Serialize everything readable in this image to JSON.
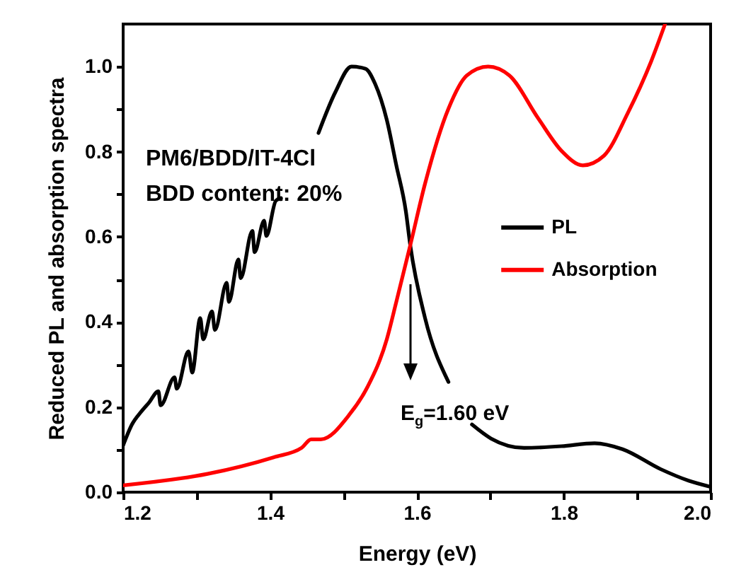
{
  "chart_data": {
    "type": "line",
    "xlabel": "Energy (eV)",
    "ylabel": "Reduced PL and absorption spectra",
    "annotations": [
      "PM6/BDD/IT-4Cl",
      "BDD content: 20%",
      "E$_{g}$=1.60 eV"
    ],
    "xlim": [
      1.2,
      2.0
    ],
    "ylim": [
      0,
      1.1
    ],
    "xticks": [
      1.2,
      {
        "value": 1.3,
        "label": null
      },
      1.4,
      {
        "value": 1.5,
        "label": null
      },
      1.6,
      {
        "value": 1.7,
        "label": null
      },
      1.8,
      {
        "value": 1.9,
        "label": null
      },
      {
        "value": 2.0,
        "label": "2.0"
      }
    ],
    "yticks": [
      {
        "value": 0,
        "label": "0.0"
      },
      {
        "value": 0.1,
        "label": null
      },
      0.2,
      {
        "value": 0.3,
        "label": null
      },
      0.4,
      {
        "value": 0.5,
        "label": null
      },
      0.6,
      {
        "value": 0.7,
        "label": null
      },
      0.8,
      {
        "value": 0.9,
        "label": null
      },
      {
        "value": 1.0,
        "label": "1.0"
      }
    ],
    "legend": "right",
    "series": [
      {
        "name": "PL",
        "color": "#000000",
        "x": [
          1.2,
          1.212,
          1.225,
          1.235,
          1.248,
          1.251,
          1.27,
          1.273,
          1.289,
          1.294,
          1.305,
          1.309,
          1.321,
          1.325,
          1.341,
          1.344,
          1.357,
          1.36,
          1.376,
          1.379,
          1.392,
          1.395,
          1.408,
          1.415,
          1.44,
          1.466,
          1.489,
          1.511,
          1.53,
          1.543,
          1.559,
          1.572,
          1.585,
          1.591,
          1.611,
          1.643,
          1.66,
          1.675,
          1.701,
          1.746,
          1.797,
          1.842,
          1.88,
          1.932,
          1.97,
          1.999
        ],
        "values": [
          0.11,
          0.159,
          0.19,
          0.21,
          0.237,
          0.204,
          0.27,
          0.243,
          0.331,
          0.281,
          0.409,
          0.359,
          0.425,
          0.381,
          0.492,
          0.447,
          0.547,
          0.503,
          0.614,
          0.564,
          0.638,
          0.602,
          0.685,
          0.691,
          null,
          0.844,
          0.94,
          1.0,
          0.995,
          0.96,
          0.875,
          0.768,
          0.66,
          0.58,
          0.41,
          0.259,
          null,
          0.159,
          0.126,
          0.104,
          0.108,
          0.115,
          0.101,
          0.054,
          0.027,
          0.013
        ]
      },
      {
        "name": "Absorption",
        "color": "#ff0000",
        "x": [
          1.2,
          1.315,
          1.405,
          1.443,
          1.456,
          1.469,
          1.508,
          1.533,
          1.559,
          1.572,
          1.591,
          1.611,
          1.643,
          1.668,
          1.697,
          1.726,
          1.765,
          1.797,
          1.826,
          1.855,
          1.887,
          1.919,
          1.938
        ],
        "values": [
          0.016,
          0.043,
          0.082,
          0.104,
          0.124,
          0.124,
          0.182,
          0.248,
          0.359,
          0.447,
          0.58,
          0.724,
          0.901,
          0.979,
          1.0,
          0.979,
          0.879,
          0.802,
          0.768,
          0.791,
          0.89,
          1.012,
          1.1
        ]
      }
    ]
  }
}
